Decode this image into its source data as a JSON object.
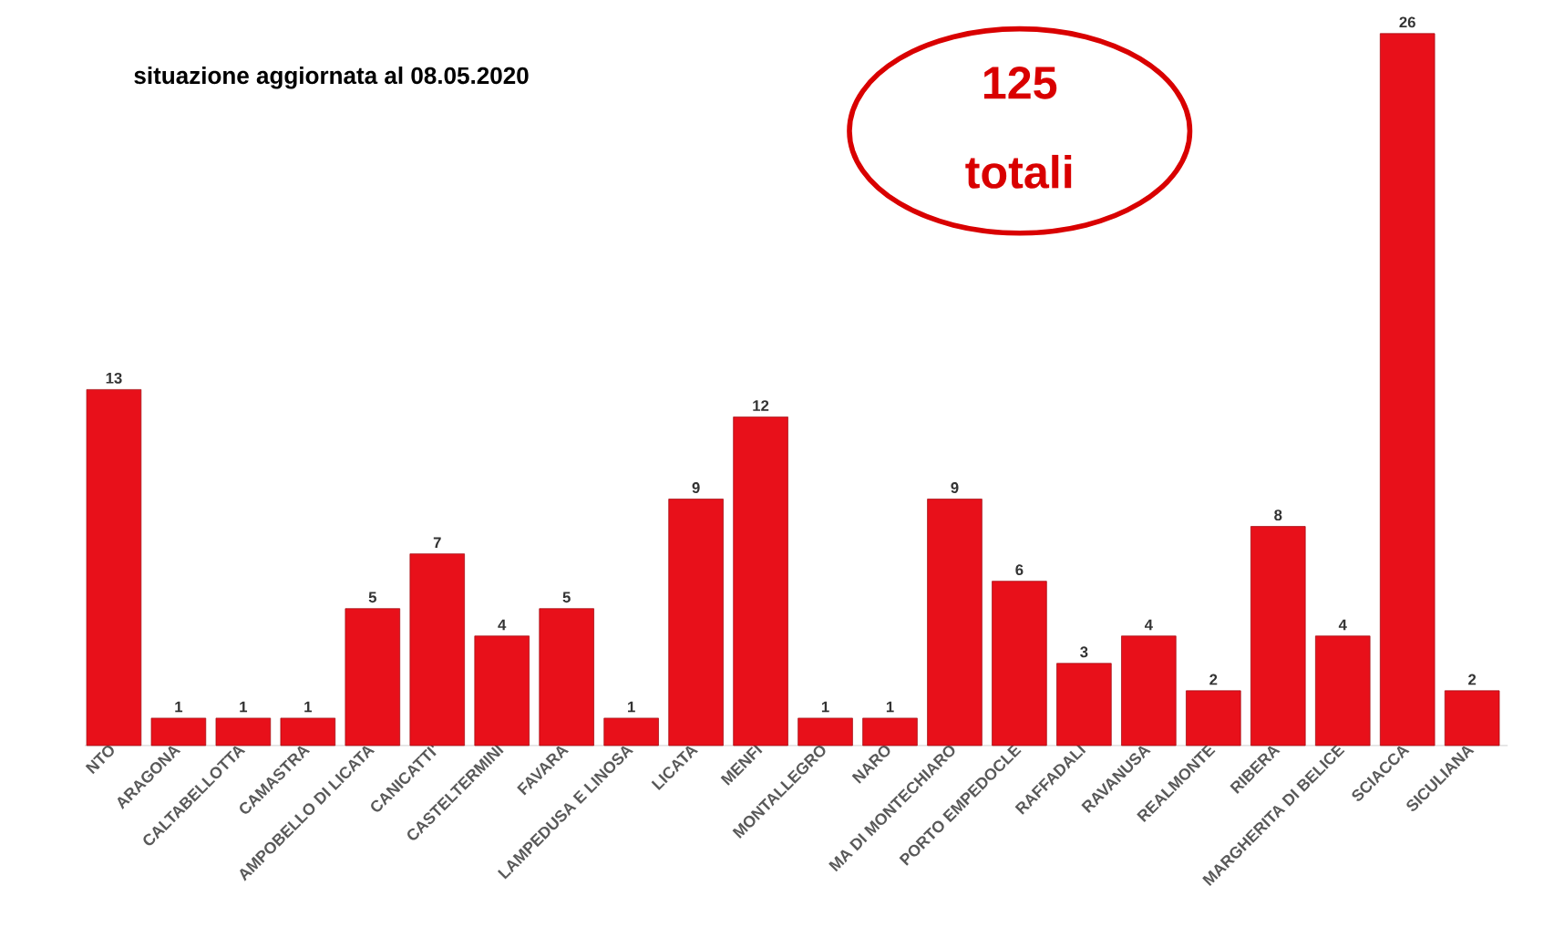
{
  "chart_data": {
    "type": "bar",
    "title": "situazione aggiornata al 08.05.2020",
    "categories": [
      "NTO",
      "ARAGONA",
      "CALTABELLOTTA",
      "CAMASTRA",
      "AMPOBELLO DI LICATA",
      "CANICATTI'",
      "CASTELTERMINI",
      "FAVARA",
      "LAMPEDUSA E LINOSA",
      "LICATA",
      "MENFI",
      "MONTALLEGRO",
      "NARO",
      "MA DI MONTECHIARO",
      "PORTO EMPEDOCLE",
      "RAFFADALI",
      "RAVANUSA",
      "REALMONTE",
      "RIBERA",
      "MARGHERITA DI BELICE",
      "SCIACCA",
      "SICULIANA"
    ],
    "values": [
      13,
      1,
      1,
      1,
      5,
      7,
      4,
      5,
      1,
      9,
      12,
      1,
      1,
      9,
      6,
      3,
      4,
      2,
      8,
      4,
      26,
      2
    ],
    "color": "#e8101a",
    "data_labels": true,
    "tick_labels": "x",
    "annotations": [
      "125",
      "totali"
    ]
  }
}
